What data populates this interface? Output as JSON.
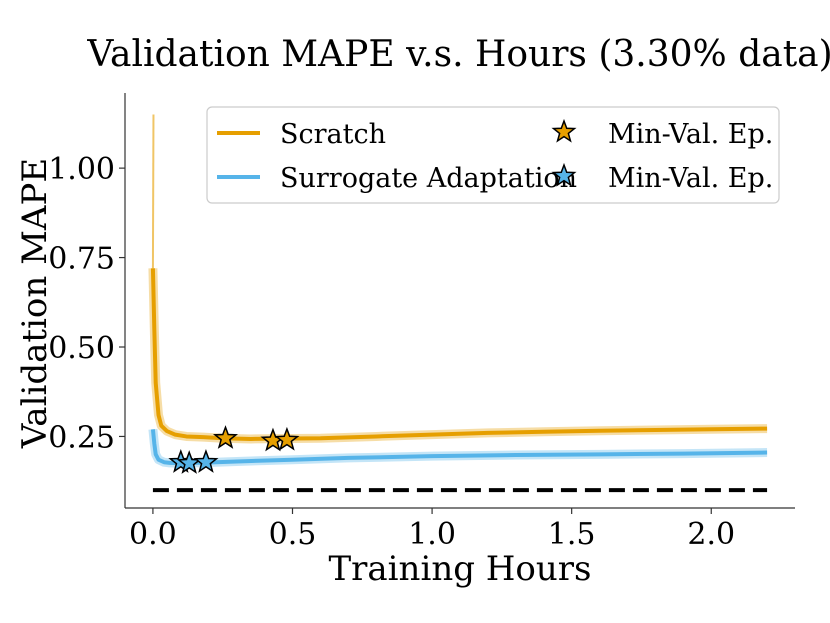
{
  "chart_data": {
    "type": "line",
    "title": "Validation MAPE v.s. Hours (3.30% data)",
    "xlabel": "Training Hours",
    "ylabel": "Validation MAPE",
    "xlim": [
      -0.1,
      2.3
    ],
    "ylim": [
      0.05,
      1.21
    ],
    "xticks": [
      0.0,
      0.5,
      1.0,
      1.5,
      2.0
    ],
    "xtick_labels": [
      "0.0",
      "0.5",
      "1.0",
      "1.5",
      "2.0"
    ],
    "yticks": [
      0.25,
      0.5,
      0.75,
      1.0
    ],
    "ytick_labels": [
      "0.25",
      "0.50",
      "0.75",
      "1.00"
    ],
    "grid": false,
    "legend_position": "top-right",
    "baseline": {
      "y": 0.1,
      "x_range": [
        0.0,
        2.2
      ],
      "style": "dashed",
      "color": "#000000"
    },
    "series": [
      {
        "name": "Scratch",
        "color": "#E69F00",
        "x": [
          0.0,
          0.005,
          0.01,
          0.02,
          0.03,
          0.05,
          0.08,
          0.12,
          0.18,
          0.25,
          0.35,
          0.45,
          0.6,
          0.8,
          1.0,
          1.2,
          1.4,
          1.6,
          1.8,
          2.0,
          2.2
        ],
        "y": [
          0.72,
          0.55,
          0.4,
          0.31,
          0.28,
          0.265,
          0.255,
          0.25,
          0.248,
          0.245,
          0.243,
          0.244,
          0.245,
          0.25,
          0.255,
          0.26,
          0.263,
          0.266,
          0.268,
          0.27,
          0.272
        ],
        "spike": {
          "x": 0.002,
          "y": 1.15
        },
        "min_val_points": [
          {
            "x": 0.26,
            "y": 0.245
          },
          {
            "x": 0.43,
            "y": 0.238
          },
          {
            "x": 0.48,
            "y": 0.24
          }
        ]
      },
      {
        "name": "Surrogate Adaptation",
        "color": "#56B4E9",
        "x": [
          0.0,
          0.005,
          0.01,
          0.02,
          0.04,
          0.06,
          0.1,
          0.15,
          0.2,
          0.3,
          0.5,
          0.7,
          1.0,
          1.3,
          1.6,
          1.9,
          2.2
        ],
        "y": [
          0.27,
          0.23,
          0.2,
          0.185,
          0.178,
          0.176,
          0.175,
          0.176,
          0.177,
          0.18,
          0.185,
          0.19,
          0.195,
          0.198,
          0.2,
          0.202,
          0.205
        ],
        "min_val_points": [
          {
            "x": 0.1,
            "y": 0.178
          },
          {
            "x": 0.13,
            "y": 0.175
          },
          {
            "x": 0.19,
            "y": 0.178
          }
        ]
      }
    ],
    "legend": {
      "entries": [
        {
          "label": "Scratch",
          "marker": "line",
          "color": "#E69F00"
        },
        {
          "label": "Surrogate Adaptation",
          "marker": "line",
          "color": "#56B4E9"
        },
        {
          "label": "Min-Val. Ep.",
          "marker": "star",
          "color": "#E69F00"
        },
        {
          "label": "Min-Val. Ep.",
          "marker": "star",
          "color": "#56B4E9"
        }
      ]
    }
  }
}
